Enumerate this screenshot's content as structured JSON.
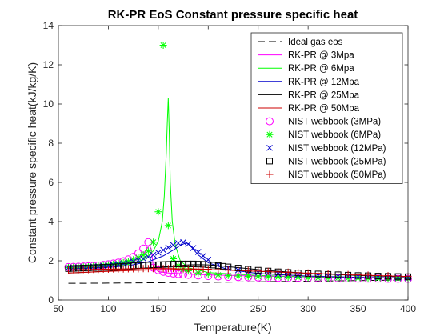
{
  "chart_data": {
    "type": "line",
    "title": "RK-PR EoS Constant pressure specific heat",
    "xlabel": "Temperature(K)",
    "ylabel": "Constant pressure specific heat(kJ/kg/K)",
    "xlim": [
      50,
      400
    ],
    "ylim": [
      0,
      14
    ],
    "xticks": [
      50,
      100,
      150,
      200,
      250,
      300,
      350,
      400
    ],
    "yticks": [
      0,
      2,
      4,
      6,
      8,
      10,
      12,
      14
    ],
    "grid": false,
    "legend_position": "top-right",
    "series": [
      {
        "name": "Ideal gas eos",
        "kind": "line",
        "color": "#000000",
        "dash": "dashed",
        "x": [
          60,
          100,
          150,
          200,
          250,
          300,
          350,
          400
        ],
        "y": [
          0.85,
          0.86,
          0.88,
          0.9,
          0.93,
          0.96,
          0.99,
          1.02
        ]
      },
      {
        "name": "RK-PR @ 3Mpa",
        "kind": "line",
        "color": "#ff00ff",
        "dash": "solid",
        "x": [
          60,
          80,
          100,
          115,
          125,
          132,
          136,
          139,
          141,
          143,
          145,
          150,
          160,
          180,
          200,
          250,
          300,
          350,
          400
        ],
        "y": [
          1.65,
          1.67,
          1.72,
          1.8,
          1.95,
          2.15,
          2.4,
          2.65,
          2.8,
          2.6,
          1.7,
          1.45,
          1.38,
          1.32,
          1.28,
          1.22,
          1.18,
          1.15,
          1.12
        ]
      },
      {
        "name": "RK-PR @ 6Mpa",
        "kind": "line",
        "color": "#00ff00",
        "dash": "solid",
        "x": [
          60,
          80,
          100,
          120,
          135,
          145,
          150,
          154,
          156,
          158,
          159,
          160,
          161,
          162,
          164,
          167,
          172,
          180,
          200,
          250,
          300,
          350,
          400
        ],
        "y": [
          1.63,
          1.65,
          1.7,
          1.82,
          2.05,
          2.5,
          3.0,
          4.0,
          5.3,
          7.5,
          9.0,
          10.3,
          8.5,
          6.0,
          4.0,
          2.8,
          2.0,
          1.65,
          1.4,
          1.25,
          1.18,
          1.15,
          1.12
        ]
      },
      {
        "name": "RK-PR @ 12Mpa",
        "kind": "line",
        "color": "#0000cc",
        "dash": "solid",
        "x": [
          60,
          80,
          100,
          120,
          140,
          155,
          165,
          172,
          177,
          180,
          184,
          190,
          200,
          220,
          250,
          300,
          350,
          400
        ],
        "y": [
          1.6,
          1.62,
          1.66,
          1.75,
          1.95,
          2.25,
          2.55,
          2.78,
          2.9,
          2.88,
          2.65,
          2.3,
          1.9,
          1.55,
          1.35,
          1.22,
          1.16,
          1.12
        ]
      },
      {
        "name": "RK-PR @ 25Mpa",
        "kind": "line",
        "color": "#000000",
        "dash": "solid",
        "x": [
          60,
          80,
          100,
          120,
          140,
          160,
          180,
          190,
          200,
          210,
          220,
          240,
          260,
          300,
          350,
          400
        ],
        "y": [
          1.38,
          1.42,
          1.48,
          1.55,
          1.63,
          1.72,
          1.79,
          1.8,
          1.79,
          1.75,
          1.7,
          1.6,
          1.5,
          1.36,
          1.25,
          1.18
        ]
      },
      {
        "name": "RK-PR @ 50Mpa",
        "kind": "line",
        "color": "#cc0000",
        "dash": "solid",
        "x": [
          60,
          80,
          100,
          120,
          140,
          160,
          180,
          200,
          220,
          250,
          300,
          350,
          400
        ],
        "y": [
          1.38,
          1.42,
          1.46,
          1.5,
          1.53,
          1.55,
          1.56,
          1.55,
          1.52,
          1.46,
          1.36,
          1.27,
          1.2
        ]
      },
      {
        "name": "NIST webbook (3MPa)",
        "kind": "marker",
        "marker": "circle",
        "color": "#ff00ff",
        "x": [
          60,
          65,
          70,
          75,
          80,
          85,
          90,
          95,
          100,
          105,
          110,
          115,
          120,
          125,
          130,
          135,
          140,
          145,
          150,
          155,
          160,
          165,
          170,
          175,
          180,
          190,
          200,
          210,
          220,
          230,
          240,
          250,
          260,
          270,
          280,
          290,
          300,
          310,
          320,
          330,
          340,
          350,
          360,
          370,
          380,
          390,
          400
        ],
        "y": [
          1.68,
          1.69,
          1.7,
          1.71,
          1.72,
          1.74,
          1.76,
          1.79,
          1.82,
          1.86,
          1.91,
          1.98,
          2.07,
          2.2,
          2.38,
          2.62,
          2.95,
          1.65,
          1.52,
          1.44,
          1.39,
          1.35,
          1.32,
          1.3,
          1.28,
          1.25,
          1.22,
          1.2,
          1.18,
          1.17,
          1.16,
          1.15,
          1.14,
          1.13,
          1.12,
          1.12,
          1.11,
          1.11,
          1.1,
          1.1,
          1.1,
          1.09,
          1.09,
          1.09,
          1.08,
          1.08,
          1.08
        ]
      },
      {
        "name": "NIST webbook (6MPa)",
        "kind": "marker",
        "marker": "asterisk",
        "color": "#00ff00",
        "x": [
          60,
          65,
          70,
          75,
          80,
          85,
          90,
          95,
          100,
          105,
          110,
          115,
          120,
          125,
          130,
          135,
          140,
          145,
          150,
          155,
          160,
          165,
          170,
          175,
          180,
          190,
          200,
          210,
          220,
          230,
          240,
          250,
          260,
          270,
          280,
          290,
          300,
          310,
          320,
          330,
          340,
          350,
          360,
          370,
          380,
          390,
          400
        ],
        "y": [
          1.66,
          1.67,
          1.68,
          1.69,
          1.7,
          1.72,
          1.74,
          1.76,
          1.79,
          1.82,
          1.86,
          1.91,
          1.97,
          2.05,
          2.16,
          2.3,
          2.5,
          2.95,
          4.5,
          13.0,
          3.8,
          2.1,
          1.75,
          1.58,
          1.49,
          1.38,
          1.32,
          1.28,
          1.25,
          1.22,
          1.2,
          1.19,
          1.18,
          1.17,
          1.16,
          1.15,
          1.14,
          1.13,
          1.13,
          1.12,
          1.12,
          1.11,
          1.11,
          1.1,
          1.1,
          1.1,
          1.09
        ]
      },
      {
        "name": "NIST webbook (12MPa)",
        "kind": "marker",
        "marker": "cross",
        "color": "#0000cc",
        "x": [
          60,
          65,
          70,
          75,
          80,
          85,
          90,
          95,
          100,
          105,
          110,
          115,
          120,
          125,
          130,
          135,
          140,
          145,
          150,
          155,
          160,
          165,
          170,
          175,
          180,
          185,
          190,
          195,
          200,
          210,
          220,
          230,
          240,
          250,
          260,
          270,
          280,
          290,
          300,
          310,
          320,
          330,
          340,
          350,
          360,
          370,
          380,
          390,
          400
        ],
        "y": [
          1.64,
          1.65,
          1.66,
          1.67,
          1.68,
          1.7,
          1.71,
          1.73,
          1.75,
          1.78,
          1.81,
          1.85,
          1.9,
          1.96,
          2.03,
          2.11,
          2.2,
          2.3,
          2.42,
          2.55,
          2.68,
          2.8,
          2.9,
          2.95,
          2.85,
          2.65,
          2.45,
          2.25,
          2.05,
          1.8,
          1.63,
          1.52,
          1.45,
          1.4,
          1.36,
          1.33,
          1.3,
          1.28,
          1.26,
          1.24,
          1.23,
          1.21,
          1.2,
          1.19,
          1.18,
          1.17,
          1.16,
          1.15,
          1.14
        ]
      },
      {
        "name": "NIST webbook (25MPa)",
        "kind": "marker",
        "marker": "square",
        "color": "#000000",
        "x": [
          60,
          65,
          70,
          75,
          80,
          85,
          90,
          95,
          100,
          105,
          110,
          115,
          120,
          125,
          130,
          135,
          140,
          145,
          150,
          155,
          160,
          165,
          170,
          175,
          180,
          185,
          190,
          195,
          200,
          205,
          210,
          215,
          220,
          230,
          240,
          250,
          260,
          270,
          280,
          290,
          300,
          310,
          320,
          330,
          340,
          350,
          360,
          370,
          380,
          390,
          400
        ],
        "y": [
          1.6,
          1.61,
          1.62,
          1.63,
          1.64,
          1.65,
          1.66,
          1.67,
          1.68,
          1.69,
          1.7,
          1.72,
          1.73,
          1.75,
          1.76,
          1.77,
          1.78,
          1.79,
          1.8,
          1.81,
          1.82,
          1.83,
          1.84,
          1.84,
          1.84,
          1.84,
          1.83,
          1.82,
          1.8,
          1.78,
          1.75,
          1.72,
          1.69,
          1.63,
          1.57,
          1.52,
          1.48,
          1.44,
          1.41,
          1.38,
          1.35,
          1.33,
          1.31,
          1.29,
          1.27,
          1.25,
          1.24,
          1.22,
          1.21,
          1.2,
          1.19
        ]
      },
      {
        "name": "NIST webbook (50MPa)",
        "kind": "marker",
        "marker": "plus",
        "color": "#cc0000",
        "x": [
          60,
          65,
          70,
          75,
          80,
          85,
          90,
          95,
          100,
          105,
          110,
          115,
          120,
          125,
          130,
          135,
          140,
          145,
          150,
          155,
          160,
          165,
          170,
          175,
          180,
          185,
          190,
          195,
          200,
          210,
          220,
          230,
          240,
          250,
          260,
          270,
          280,
          290,
          300,
          310,
          320,
          330,
          340,
          350,
          360,
          370,
          380,
          390,
          400
        ],
        "y": [
          1.53,
          1.54,
          1.54,
          1.55,
          1.55,
          1.56,
          1.56,
          1.57,
          1.57,
          1.58,
          1.58,
          1.58,
          1.59,
          1.59,
          1.59,
          1.6,
          1.6,
          1.6,
          1.6,
          1.6,
          1.6,
          1.6,
          1.59,
          1.59,
          1.59,
          1.58,
          1.58,
          1.57,
          1.57,
          1.55,
          1.54,
          1.52,
          1.5,
          1.48,
          1.46,
          1.44,
          1.42,
          1.4,
          1.38,
          1.36,
          1.34,
          1.32,
          1.3,
          1.28,
          1.27,
          1.25,
          1.24,
          1.22,
          1.21
        ]
      }
    ]
  }
}
